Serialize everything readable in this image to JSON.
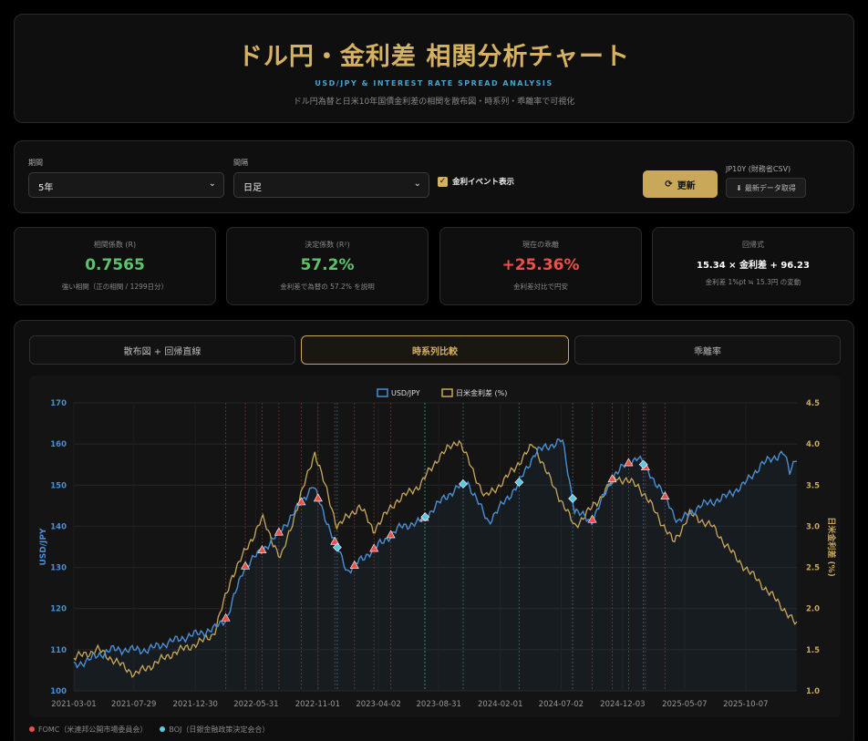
{
  "header": {
    "title": "ドル円・金利差 相関分析チャート",
    "subtitle": "USD/JPY & INTEREST RATE SPREAD ANALYSIS",
    "description": "ドル円為替と日米10年国債金利差の相関を散布図・時系列・乖離率で可視化"
  },
  "controls": {
    "period_label": "期間",
    "period_value": "5年",
    "interval_label": "間隔",
    "interval_value": "日足",
    "event_toggle_label": "金利イベント表示",
    "event_toggle_checked": true,
    "refresh_label": "更新",
    "csv_label": "JP10Y (財務省CSV)",
    "csv_button_label": "最新データ取得"
  },
  "stats": [
    {
      "label": "相関係数 (R)",
      "value": "0.7565",
      "sub": "強い相関（正の相関 / 1299日分）",
      "color": "#5cc46a"
    },
    {
      "label": "決定係数 (R²)",
      "value": "57.2%",
      "sub": "金利差で為替の 57.2% を説明",
      "color": "#5cc46a"
    },
    {
      "label": "現在の乖離",
      "value": "+25.36%",
      "sub": "金利差対比で円安",
      "color": "#e8524a"
    },
    {
      "label": "回帰式",
      "value": "15.34 × 金利差 + 96.23",
      "sub": "金利差 1%pt ≒ 15.3円 の変動",
      "color": "#ffffff"
    }
  ],
  "tabs": [
    {
      "label": "散布図 + 回帰直線",
      "active": false
    },
    {
      "label": "時系列比較",
      "active": true
    },
    {
      "label": "乖離率",
      "active": false
    }
  ],
  "legend_bottom": {
    "fomc": "FOMC（米連邦公開市場委員会）",
    "boj": "BOJ（日銀金融政策決定会合）",
    "fomc_color": "#e8524a",
    "boj_color": "#5bc8e0"
  },
  "chart_data": {
    "type": "line",
    "legend": [
      "USD/JPY",
      "日米金利差 (%)"
    ],
    "ylabel_left": "USD/JPY",
    "ylabel_right": "日米金利差 (%)",
    "ylim_left": [
      100,
      170
    ],
    "ylim_right": [
      1.0,
      4.5
    ],
    "yticks_left": [
      "170",
      "160",
      "150",
      "140",
      "130",
      "120",
      "110",
      "100"
    ],
    "yticks_right": [
      "4.5",
      "4.0",
      "3.5",
      "3.0",
      "2.5",
      "2.0",
      "1.5",
      "1.0"
    ],
    "xtick_labels": [
      "2021-03-01",
      "2021-07-29",
      "2021-12-30",
      "2022-05-31",
      "2022-11-01",
      "2023-04-02",
      "2023-08-31",
      "2024-02-01",
      "2024-07-02",
      "2024-12-03",
      "2025-05-07",
      "2025-10-07"
    ],
    "colors": {
      "usdjpy": "#4a8fd4",
      "spread": "#c9a85a"
    },
    "series": [
      {
        "name": "USD/JPY",
        "x": [
          "2021-03-01",
          "2021-06-01",
          "2021-09-01",
          "2021-12-01",
          "2022-02-15",
          "2022-03-20",
          "2022-05-01",
          "2022-07-15",
          "2022-09-01",
          "2022-10-20",
          "2022-12-15",
          "2023-01-15",
          "2023-03-15",
          "2023-05-30",
          "2023-07-15",
          "2023-09-15",
          "2023-11-10",
          "2024-01-02",
          "2024-03-15",
          "2024-04-29",
          "2024-07-05",
          "2024-08-05",
          "2024-09-15",
          "2024-11-15",
          "2025-01-10",
          "2025-03-15",
          "2025-04-21",
          "2025-06-15",
          "2025-08-15",
          "2025-10-01",
          "2025-11-15",
          "2026-01-10",
          "2026-01-25",
          "2026-02-10"
        ],
        "values": [
          106,
          110,
          110,
          113,
          115,
          118,
          130,
          137,
          143,
          150,
          136,
          129,
          134,
          140,
          141,
          147,
          151,
          141,
          150,
          158,
          161,
          144,
          141,
          153,
          157,
          148,
          141,
          145,
          147,
          150,
          155,
          158,
          153,
          157
        ]
      },
      {
        "name": "日米金利差 (%)",
        "x": [
          "2021-03-01",
          "2021-05-01",
          "2021-08-01",
          "2021-11-01",
          "2022-01-15",
          "2022-02-15",
          "2022-04-01",
          "2022-05-15",
          "2022-06-15",
          "2022-08-01",
          "2022-09-15",
          "2022-10-25",
          "2022-12-20",
          "2023-02-15",
          "2023-03-20",
          "2023-05-15",
          "2023-07-15",
          "2023-09-01",
          "2023-10-20",
          "2023-12-25",
          "2024-02-10",
          "2024-04-25",
          "2024-06-01",
          "2024-08-05",
          "2024-10-01",
          "2024-11-15",
          "2025-01-10",
          "2025-02-20",
          "2025-04-10",
          "2025-05-20",
          "2025-07-15",
          "2025-09-15",
          "2025-11-15",
          "2026-01-10",
          "2026-02-10"
        ],
        "values": [
          1.4,
          1.5,
          1.2,
          1.45,
          1.6,
          1.7,
          2.4,
          2.8,
          3.1,
          2.6,
          3.3,
          3.9,
          3.0,
          3.25,
          2.95,
          3.3,
          3.5,
          3.85,
          4.05,
          3.35,
          3.55,
          4.0,
          3.6,
          3.0,
          3.3,
          3.6,
          3.5,
          3.2,
          2.8,
          3.15,
          3.0,
          2.6,
          2.3,
          2.0,
          1.8
        ]
      }
    ],
    "events": {
      "fomc": [
        "2022-03-16",
        "2022-05-04",
        "2022-06-15",
        "2022-07-27",
        "2022-09-21",
        "2022-11-02",
        "2022-12-14",
        "2023-02-01",
        "2023-03-22",
        "2023-05-03",
        "2023-07-26",
        "2024-09-18",
        "2024-11-07",
        "2024-12-18",
        "2025-01-29",
        "2025-03-19"
      ],
      "boj": [
        "2022-12-20",
        "2023-07-28",
        "2023-10-31",
        "2024-03-19",
        "2024-07-31",
        "2025-01-24"
      ]
    }
  }
}
